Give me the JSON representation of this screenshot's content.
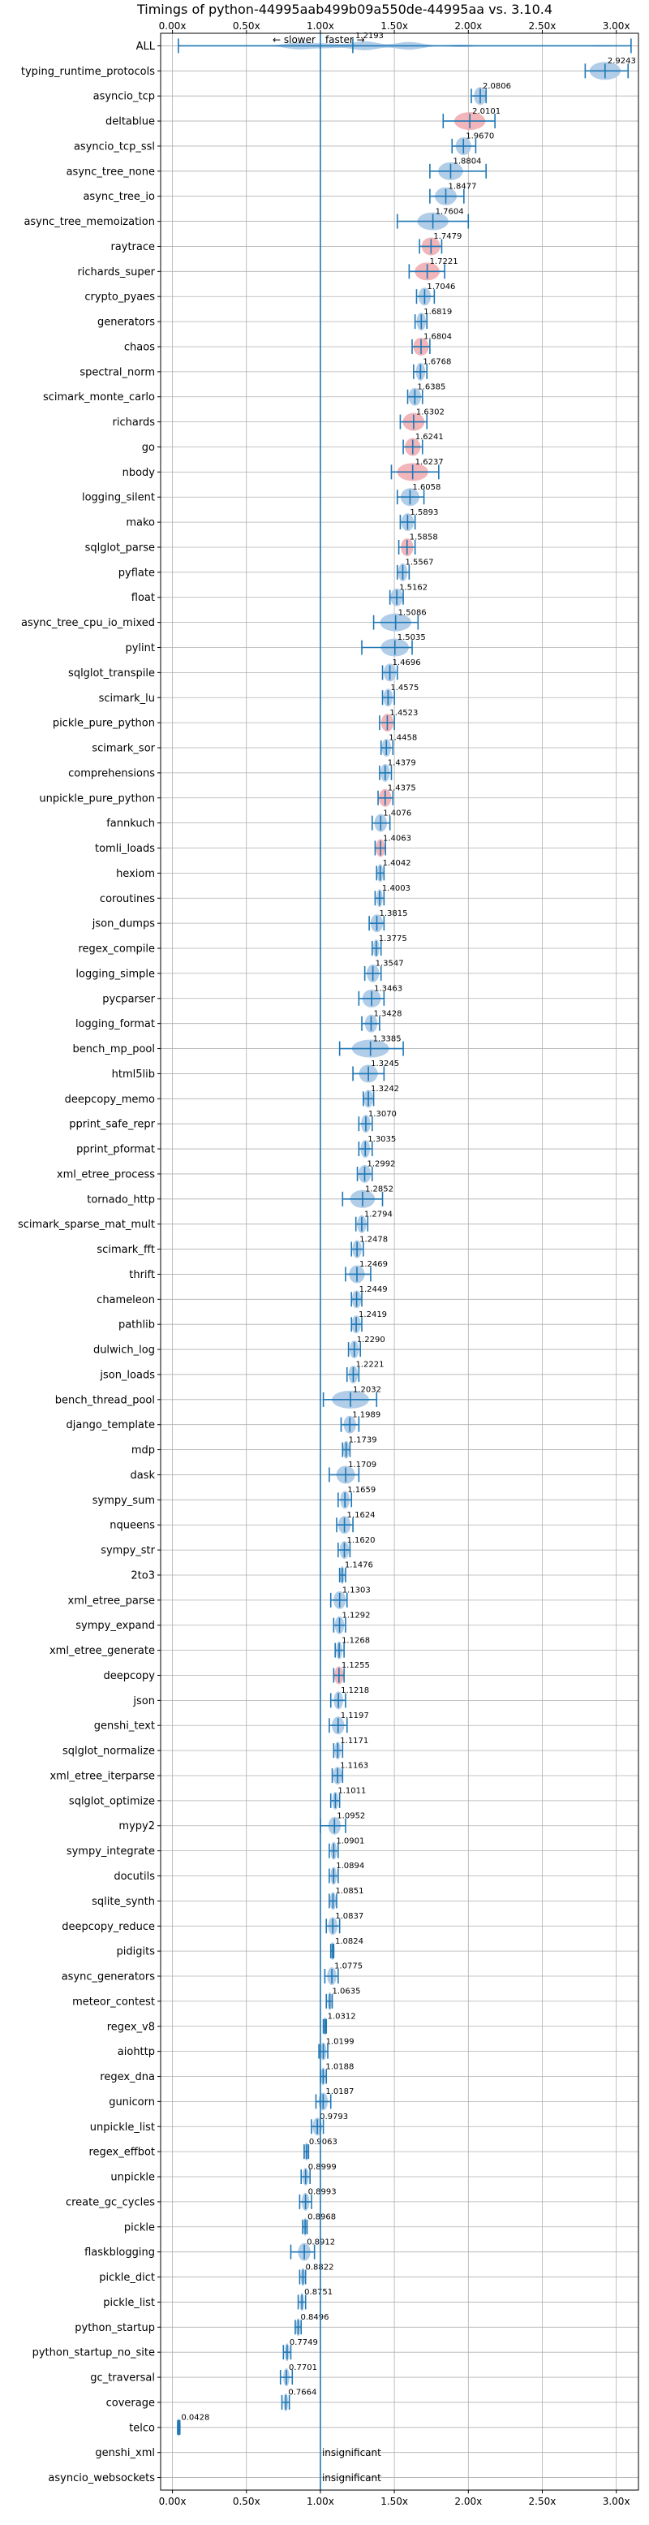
{
  "chart_data": {
    "type": "violin",
    "title": "Timings of python-44995aab499b09a550de-44995aa vs. 3.10.4",
    "annotation_slower": "← slower",
    "annotation_faster": "faster →",
    "xlim": [
      -0.08,
      3.15
    ],
    "xticks": [
      0,
      0.5,
      1,
      1.5,
      2,
      2.5,
      3
    ],
    "xtick_labels": [
      "0.00x",
      "0.50x",
      "1.00x",
      "1.50x",
      "2.00x",
      "2.50x",
      "3.00x"
    ],
    "grid": true,
    "reference_line": 1.0,
    "colors": {
      "faster": "#1f77b4",
      "violin_blue": "#a9c8e6",
      "violin_red": "#f0a8ad",
      "axis": "#000000",
      "grid": "#b0b0b0"
    },
    "insignificant_text": "insignificant",
    "benchmarks": [
      {
        "name": "ALL",
        "value": 1.2193,
        "label": "1.2193",
        "low": 0.04,
        "high": 3.1,
        "spread": 0.55,
        "color": "blue",
        "shape": "all"
      },
      {
        "name": "typing_runtime_protocols",
        "value": 2.9243,
        "label": "2.9243",
        "low": 2.79,
        "high": 3.08,
        "spread": 0.1,
        "color": "blue"
      },
      {
        "name": "asyncio_tcp",
        "value": 2.0806,
        "label": "2.0806",
        "low": 2.02,
        "high": 2.12,
        "spread": 0.04,
        "color": "blue"
      },
      {
        "name": "deltablue",
        "value": 2.0101,
        "label": "2.0101",
        "low": 1.83,
        "high": 2.18,
        "spread": 0.1,
        "color": "red"
      },
      {
        "name": "asyncio_tcp_ssl",
        "value": 1.967,
        "label": "1.9670",
        "low": 1.89,
        "high": 2.05,
        "spread": 0.05,
        "color": "blue"
      },
      {
        "name": "async_tree_none",
        "value": 1.8804,
        "label": "1.8804",
        "low": 1.74,
        "high": 2.12,
        "spread": 0.08,
        "color": "blue"
      },
      {
        "name": "async_tree_io",
        "value": 1.8477,
        "label": "1.8477",
        "low": 1.74,
        "high": 1.97,
        "spread": 0.07,
        "color": "blue"
      },
      {
        "name": "async_tree_memoization",
        "value": 1.7604,
        "label": "1.7604",
        "low": 1.52,
        "high": 2.0,
        "spread": 0.1,
        "color": "blue"
      },
      {
        "name": "raytrace",
        "value": 1.7479,
        "label": "1.7479",
        "low": 1.67,
        "high": 1.82,
        "spread": 0.06,
        "color": "red"
      },
      {
        "name": "richards_super",
        "value": 1.7221,
        "label": "1.7221",
        "low": 1.6,
        "high": 1.84,
        "spread": 0.08,
        "color": "red"
      },
      {
        "name": "crypto_pyaes",
        "value": 1.7046,
        "label": "1.7046",
        "low": 1.65,
        "high": 1.77,
        "spread": 0.04,
        "color": "blue"
      },
      {
        "name": "generators",
        "value": 1.6819,
        "label": "1.6819",
        "low": 1.64,
        "high": 1.72,
        "spread": 0.03,
        "color": "blue"
      },
      {
        "name": "chaos",
        "value": 1.6804,
        "label": "1.6804",
        "low": 1.62,
        "high": 1.74,
        "spread": 0.05,
        "color": "red"
      },
      {
        "name": "spectral_norm",
        "value": 1.6768,
        "label": "1.6768",
        "low": 1.63,
        "high": 1.72,
        "spread": 0.03,
        "color": "blue"
      },
      {
        "name": "scimark_monte_carlo",
        "value": 1.6385,
        "label": "1.6385",
        "low": 1.59,
        "high": 1.69,
        "spread": 0.04,
        "color": "blue"
      },
      {
        "name": "richards",
        "value": 1.6302,
        "label": "1.6302",
        "low": 1.54,
        "high": 1.72,
        "spread": 0.07,
        "color": "red"
      },
      {
        "name": "go",
        "value": 1.6241,
        "label": "1.6241",
        "low": 1.56,
        "high": 1.69,
        "spread": 0.05,
        "color": "red"
      },
      {
        "name": "nbody",
        "value": 1.6237,
        "label": "1.6237",
        "low": 1.48,
        "high": 1.8,
        "spread": 0.1,
        "color": "red"
      },
      {
        "name": "logging_silent",
        "value": 1.6058,
        "label": "1.6058",
        "low": 1.52,
        "high": 1.7,
        "spread": 0.06,
        "color": "blue"
      },
      {
        "name": "mako",
        "value": 1.5893,
        "label": "1.5893",
        "low": 1.54,
        "high": 1.64,
        "spread": 0.04,
        "color": "blue"
      },
      {
        "name": "sqlglot_parse",
        "value": 1.5858,
        "label": "1.5858",
        "low": 1.53,
        "high": 1.64,
        "spread": 0.04,
        "color": "red"
      },
      {
        "name": "pyflate",
        "value": 1.5567,
        "label": "1.5567",
        "low": 1.52,
        "high": 1.6,
        "spread": 0.03,
        "color": "blue"
      },
      {
        "name": "float",
        "value": 1.5162,
        "label": "1.5162",
        "low": 1.47,
        "high": 1.56,
        "spread": 0.04,
        "color": "blue"
      },
      {
        "name": "async_tree_cpu_io_mixed",
        "value": 1.5086,
        "label": "1.5086",
        "low": 1.36,
        "high": 1.66,
        "spread": 0.1,
        "color": "blue"
      },
      {
        "name": "pylint",
        "value": 1.5035,
        "label": "1.5035",
        "low": 1.28,
        "high": 1.62,
        "spread": 0.09,
        "color": "blue"
      },
      {
        "name": "sqlglot_transpile",
        "value": 1.4696,
        "label": "1.4696",
        "low": 1.42,
        "high": 1.52,
        "spread": 0.04,
        "color": "blue"
      },
      {
        "name": "scimark_lu",
        "value": 1.4575,
        "label": "1.4575",
        "low": 1.42,
        "high": 1.5,
        "spread": 0.03,
        "color": "blue"
      },
      {
        "name": "pickle_pure_python",
        "value": 1.4523,
        "label": "1.4523",
        "low": 1.4,
        "high": 1.5,
        "spread": 0.04,
        "color": "red"
      },
      {
        "name": "scimark_sor",
        "value": 1.4458,
        "label": "1.4458",
        "low": 1.41,
        "high": 1.49,
        "spread": 0.03,
        "color": "blue"
      },
      {
        "name": "comprehensions",
        "value": 1.4379,
        "label": "1.4379",
        "low": 1.4,
        "high": 1.48,
        "spread": 0.03,
        "color": "blue"
      },
      {
        "name": "unpickle_pure_python",
        "value": 1.4375,
        "label": "1.4375",
        "low": 1.39,
        "high": 1.49,
        "spread": 0.04,
        "color": "red"
      },
      {
        "name": "fannkuch",
        "value": 1.4076,
        "label": "1.4076",
        "low": 1.35,
        "high": 1.47,
        "spread": 0.04,
        "color": "blue"
      },
      {
        "name": "tomli_loads",
        "value": 1.4063,
        "label": "1.4063",
        "low": 1.37,
        "high": 1.44,
        "spread": 0.03,
        "color": "red"
      },
      {
        "name": "hexiom",
        "value": 1.4042,
        "label": "1.4042",
        "low": 1.38,
        "high": 1.43,
        "spread": 0.02,
        "color": "blue"
      },
      {
        "name": "coroutines",
        "value": 1.4003,
        "label": "1.4003",
        "low": 1.37,
        "high": 1.43,
        "spread": 0.02,
        "color": "blue"
      },
      {
        "name": "json_dumps",
        "value": 1.3815,
        "label": "1.3815",
        "low": 1.33,
        "high": 1.43,
        "spread": 0.04,
        "color": "blue"
      },
      {
        "name": "regex_compile",
        "value": 1.3775,
        "label": "1.3775",
        "low": 1.35,
        "high": 1.41,
        "spread": 0.02,
        "color": "blue"
      },
      {
        "name": "logging_simple",
        "value": 1.3547,
        "label": "1.3547",
        "low": 1.3,
        "high": 1.41,
        "spread": 0.04,
        "color": "blue"
      },
      {
        "name": "pycparser",
        "value": 1.3463,
        "label": "1.3463",
        "low": 1.26,
        "high": 1.43,
        "spread": 0.06,
        "color": "blue"
      },
      {
        "name": "logging_format",
        "value": 1.3428,
        "label": "1.3428",
        "low": 1.28,
        "high": 1.4,
        "spread": 0.04,
        "color": "blue"
      },
      {
        "name": "bench_mp_pool",
        "value": 1.3385,
        "label": "1.3385",
        "low": 1.13,
        "high": 1.56,
        "spread": 0.12,
        "color": "blue"
      },
      {
        "name": "html5lib",
        "value": 1.3245,
        "label": "1.3245",
        "low": 1.22,
        "high": 1.43,
        "spread": 0.06,
        "color": "blue"
      },
      {
        "name": "deepcopy_memo",
        "value": 1.3242,
        "label": "1.3242",
        "low": 1.29,
        "high": 1.36,
        "spread": 0.03,
        "color": "blue"
      },
      {
        "name": "pprint_safe_repr",
        "value": 1.307,
        "label": "1.3070",
        "low": 1.26,
        "high": 1.35,
        "spread": 0.03,
        "color": "blue"
      },
      {
        "name": "pprint_pformat",
        "value": 1.3035,
        "label": "1.3035",
        "low": 1.26,
        "high": 1.35,
        "spread": 0.03,
        "color": "blue"
      },
      {
        "name": "xml_etree_process",
        "value": 1.2992,
        "label": "1.2992",
        "low": 1.25,
        "high": 1.35,
        "spread": 0.04,
        "color": "blue"
      },
      {
        "name": "tornado_http",
        "value": 1.2852,
        "label": "1.2852",
        "low": 1.15,
        "high": 1.42,
        "spread": 0.08,
        "color": "blue"
      },
      {
        "name": "scimark_sparse_mat_mult",
        "value": 1.2794,
        "label": "1.2794",
        "low": 1.24,
        "high": 1.32,
        "spread": 0.03,
        "color": "blue"
      },
      {
        "name": "scimark_fft",
        "value": 1.2478,
        "label": "1.2478",
        "low": 1.21,
        "high": 1.29,
        "spread": 0.03,
        "color": "blue"
      },
      {
        "name": "thrift",
        "value": 1.2469,
        "label": "1.2469",
        "low": 1.17,
        "high": 1.34,
        "spread": 0.05,
        "color": "blue"
      },
      {
        "name": "chameleon",
        "value": 1.2449,
        "label": "1.2449",
        "low": 1.21,
        "high": 1.28,
        "spread": 0.03,
        "color": "blue"
      },
      {
        "name": "pathlib",
        "value": 1.2419,
        "label": "1.2419",
        "low": 1.21,
        "high": 1.28,
        "spread": 0.03,
        "color": "blue"
      },
      {
        "name": "dulwich_log",
        "value": 1.229,
        "label": "1.2290",
        "low": 1.19,
        "high": 1.27,
        "spread": 0.03,
        "color": "blue"
      },
      {
        "name": "json_loads",
        "value": 1.2221,
        "label": "1.2221",
        "low": 1.18,
        "high": 1.26,
        "spread": 0.03,
        "color": "blue"
      },
      {
        "name": "bench_thread_pool",
        "value": 1.2032,
        "label": "1.2032",
        "low": 1.02,
        "high": 1.38,
        "spread": 0.12,
        "color": "blue"
      },
      {
        "name": "django_template",
        "value": 1.1989,
        "label": "1.1989",
        "low": 1.14,
        "high": 1.26,
        "spread": 0.04,
        "color": "blue"
      },
      {
        "name": "mdp",
        "value": 1.1739,
        "label": "1.1739",
        "low": 1.15,
        "high": 1.2,
        "spread": 0.02,
        "color": "blue"
      },
      {
        "name": "dask",
        "value": 1.1709,
        "label": "1.1709",
        "low": 1.06,
        "high": 1.26,
        "spread": 0.06,
        "color": "blue"
      },
      {
        "name": "sympy_sum",
        "value": 1.1659,
        "label": "1.1659",
        "low": 1.12,
        "high": 1.21,
        "spread": 0.03,
        "color": "blue"
      },
      {
        "name": "nqueens",
        "value": 1.1624,
        "label": "1.1624",
        "low": 1.11,
        "high": 1.22,
        "spread": 0.04,
        "color": "blue"
      },
      {
        "name": "sympy_str",
        "value": 1.162,
        "label": "1.1620",
        "low": 1.12,
        "high": 1.2,
        "spread": 0.03,
        "color": "blue"
      },
      {
        "name": "2to3",
        "value": 1.1476,
        "label": "1.1476",
        "low": 1.13,
        "high": 1.17,
        "spread": 0.015,
        "color": "blue"
      },
      {
        "name": "xml_etree_parse",
        "value": 1.1303,
        "label": "1.1303",
        "low": 1.07,
        "high": 1.18,
        "spread": 0.04,
        "color": "blue"
      },
      {
        "name": "sympy_expand",
        "value": 1.1292,
        "label": "1.1292",
        "low": 1.09,
        "high": 1.17,
        "spread": 0.03,
        "color": "blue"
      },
      {
        "name": "xml_etree_generate",
        "value": 1.1268,
        "label": "1.1268",
        "low": 1.1,
        "high": 1.16,
        "spread": 0.02,
        "color": "blue"
      },
      {
        "name": "deepcopy",
        "value": 1.1255,
        "label": "1.1255",
        "low": 1.09,
        "high": 1.16,
        "spread": 0.03,
        "color": "red"
      },
      {
        "name": "json",
        "value": 1.1218,
        "label": "1.1218",
        "low": 1.07,
        "high": 1.17,
        "spread": 0.03,
        "color": "blue"
      },
      {
        "name": "genshi_text",
        "value": 1.1197,
        "label": "1.1197",
        "low": 1.06,
        "high": 1.18,
        "spread": 0.04,
        "color": "blue"
      },
      {
        "name": "sqlglot_normalize",
        "value": 1.1171,
        "label": "1.1171",
        "low": 1.09,
        "high": 1.15,
        "spread": 0.02,
        "color": "blue"
      },
      {
        "name": "xml_etree_iterparse",
        "value": 1.1163,
        "label": "1.1163",
        "low": 1.08,
        "high": 1.15,
        "spread": 0.03,
        "color": "blue"
      },
      {
        "name": "sqlglot_optimize",
        "value": 1.1011,
        "label": "1.1011",
        "low": 1.07,
        "high": 1.13,
        "spread": 0.02,
        "color": "blue"
      },
      {
        "name": "mypy2",
        "value": 1.0952,
        "label": "1.0952",
        "low": 1.0,
        "high": 1.17,
        "spread": 0.04,
        "color": "blue"
      },
      {
        "name": "sympy_integrate",
        "value": 1.0901,
        "label": "1.0901",
        "low": 1.06,
        "high": 1.12,
        "spread": 0.02,
        "color": "blue"
      },
      {
        "name": "docutils",
        "value": 1.0894,
        "label": "1.0894",
        "low": 1.06,
        "high": 1.12,
        "spread": 0.02,
        "color": "blue"
      },
      {
        "name": "sqlite_synth",
        "value": 1.0851,
        "label": "1.0851",
        "low": 1.06,
        "high": 1.11,
        "spread": 0.02,
        "color": "blue"
      },
      {
        "name": "deepcopy_reduce",
        "value": 1.0837,
        "label": "1.0837",
        "low": 1.04,
        "high": 1.13,
        "spread": 0.03,
        "color": "blue"
      },
      {
        "name": "pidigits",
        "value": 1.0824,
        "label": "1.0824",
        "low": 1.07,
        "high": 1.09,
        "spread": 0.01,
        "color": "blue"
      },
      {
        "name": "async_generators",
        "value": 1.0775,
        "label": "1.0775",
        "low": 1.03,
        "high": 1.12,
        "spread": 0.03,
        "color": "blue"
      },
      {
        "name": "meteor_contest",
        "value": 1.0635,
        "label": "1.0635",
        "low": 1.04,
        "high": 1.08,
        "spread": 0.015,
        "color": "blue"
      },
      {
        "name": "regex_v8",
        "value": 1.0312,
        "label": "1.0312",
        "low": 1.02,
        "high": 1.04,
        "spread": 0.01,
        "color": "blue"
      },
      {
        "name": "aiohttp",
        "value": 1.0199,
        "label": "1.0199",
        "low": 0.99,
        "high": 1.05,
        "spread": 0.02,
        "color": "blue"
      },
      {
        "name": "regex_dna",
        "value": 1.0188,
        "label": "1.0188",
        "low": 1.0,
        "high": 1.04,
        "spread": 0.015,
        "color": "blue"
      },
      {
        "name": "gunicorn",
        "value": 1.0187,
        "label": "1.0187",
        "low": 0.97,
        "high": 1.07,
        "spread": 0.03,
        "color": "blue"
      },
      {
        "name": "unpickle_list",
        "value": 0.9793,
        "label": "0.9793",
        "low": 0.94,
        "high": 1.02,
        "spread": 0.03,
        "color": "blue"
      },
      {
        "name": "regex_effbot",
        "value": 0.9063,
        "label": "0.9063",
        "low": 0.89,
        "high": 0.92,
        "spread": 0.015,
        "color": "blue"
      },
      {
        "name": "unpickle",
        "value": 0.8999,
        "label": "0.8999",
        "low": 0.87,
        "high": 0.93,
        "spread": 0.02,
        "color": "blue"
      },
      {
        "name": "create_gc_cycles",
        "value": 0.8993,
        "label": "0.8993",
        "low": 0.86,
        "high": 0.94,
        "spread": 0.025,
        "color": "blue"
      },
      {
        "name": "pickle",
        "value": 0.8968,
        "label": "0.8968",
        "low": 0.88,
        "high": 0.91,
        "spread": 0.012,
        "color": "blue"
      },
      {
        "name": "flaskblogging",
        "value": 0.8912,
        "label": "0.8912",
        "low": 0.8,
        "high": 0.96,
        "spread": 0.04,
        "color": "blue"
      },
      {
        "name": "pickle_dict",
        "value": 0.8822,
        "label": "0.8822",
        "low": 0.86,
        "high": 0.9,
        "spread": 0.015,
        "color": "blue"
      },
      {
        "name": "pickle_list",
        "value": 0.8751,
        "label": "0.8751",
        "low": 0.85,
        "high": 0.9,
        "spread": 0.015,
        "color": "blue"
      },
      {
        "name": "python_startup",
        "value": 0.8496,
        "label": "0.8496",
        "low": 0.83,
        "high": 0.87,
        "spread": 0.015,
        "color": "blue"
      },
      {
        "name": "python_startup_no_site",
        "value": 0.7749,
        "label": "0.7749",
        "low": 0.75,
        "high": 0.8,
        "spread": 0.015,
        "color": "blue"
      },
      {
        "name": "gc_traversal",
        "value": 0.7701,
        "label": "0.7701",
        "low": 0.73,
        "high": 0.81,
        "spread": 0.02,
        "color": "blue"
      },
      {
        "name": "coverage",
        "value": 0.7664,
        "label": "0.7664",
        "low": 0.74,
        "high": 0.79,
        "spread": 0.015,
        "color": "blue"
      },
      {
        "name": "telco",
        "value": 0.0428,
        "label": "0.0428",
        "low": 0.035,
        "high": 0.05,
        "spread": 0.005,
        "color": "blue"
      },
      {
        "name": "genshi_xml",
        "value": null,
        "label": "insignificant",
        "insignificant": true
      },
      {
        "name": "asyncio_websockets",
        "value": null,
        "label": "insignificant",
        "insignificant": true
      }
    ]
  }
}
